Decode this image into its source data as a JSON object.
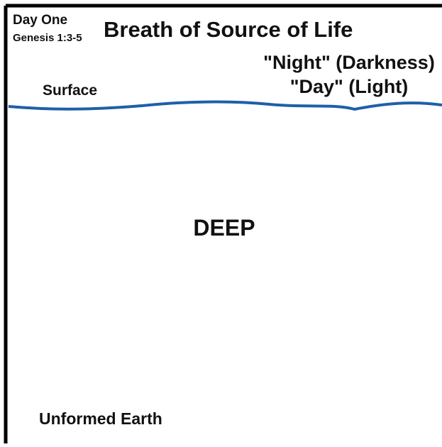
{
  "header": {
    "day": "Day One",
    "reference": "Genesis 1:3-5",
    "title": "Breath of Source of Life"
  },
  "labels": {
    "night": "\"Night\" (Darkness)",
    "day": "\"Day\" (Light)",
    "surface": "Surface",
    "deep": "DEEP",
    "earth": "Unformed Earth"
  }
}
